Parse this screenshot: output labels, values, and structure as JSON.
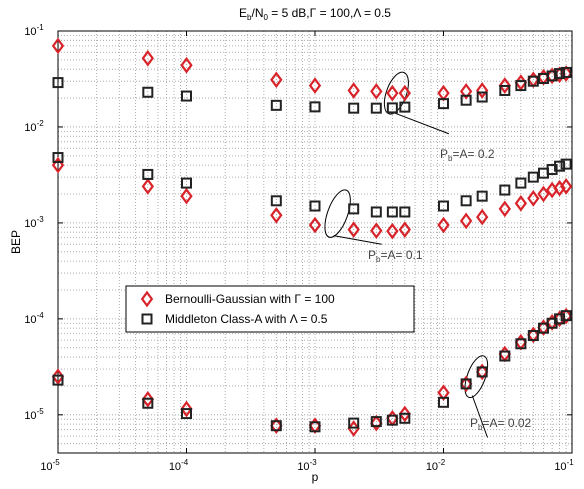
{
  "chart_data": {
    "type": "scatter",
    "title": {
      "prefix": "E",
      "sub": "b",
      "mid": "/N",
      "sub2": "0",
      "suffix": " = 5 dB,Γ = 100,Λ = 0.5"
    },
    "xlabel": "p",
    "ylabel": "BEP",
    "xscale": "log",
    "yscale": "log",
    "xlim": [
      1e-05,
      0.1
    ],
    "ylim": [
      4e-06,
      0.1
    ],
    "grid": true,
    "legend_position": "center-left",
    "x_ticks": [
      {
        "value": 1e-05,
        "base": "10",
        "exp": "-5"
      },
      {
        "value": 0.0001,
        "base": "10",
        "exp": "-4"
      },
      {
        "value": 0.001,
        "base": "10",
        "exp": "-3"
      },
      {
        "value": 0.01,
        "base": "10",
        "exp": "-2"
      },
      {
        "value": 0.1,
        "base": "10",
        "exp": "-1"
      }
    ],
    "y_ticks": [
      {
        "value": 1e-05,
        "base": "10",
        "exp": "-5"
      },
      {
        "value": 0.0001,
        "base": "10",
        "exp": "-4"
      },
      {
        "value": 0.001,
        "base": "10",
        "exp": "-3"
      },
      {
        "value": 0.01,
        "base": "10",
        "exp": "-2"
      },
      {
        "value": 0.1,
        "base": "10",
        "exp": "-1"
      }
    ],
    "series": [
      {
        "name": "Bernoulli-Gaussian with  Γ = 100",
        "marker": "diamond",
        "color": "#d9232a",
        "groups": [
          {
            "x": [
              1e-05,
              5e-05,
              0.0001,
              0.0005,
              0.001,
              0.002,
              0.003,
              0.004,
              0.005,
              0.01,
              0.015,
              0.02,
              0.03,
              0.04,
              0.05,
              0.06,
              0.07,
              0.08,
              0.09
            ],
            "y": [
              0.07,
              0.052,
              0.044,
              0.031,
              0.027,
              0.024,
              0.0235,
              0.0225,
              0.0225,
              0.0225,
              0.0235,
              0.024,
              0.027,
              0.029,
              0.031,
              0.033,
              0.034,
              0.035,
              0.036
            ]
          },
          {
            "x": [
              1e-05,
              5e-05,
              0.0001,
              0.0005,
              0.001,
              0.002,
              0.003,
              0.004,
              0.005,
              0.01,
              0.015,
              0.02,
              0.03,
              0.04,
              0.05,
              0.06,
              0.07,
              0.08,
              0.09
            ],
            "y": [
              0.004,
              0.0024,
              0.0019,
              0.0012,
              0.00095,
              0.00085,
              0.00083,
              0.00082,
              0.00085,
              0.00095,
              0.00105,
              0.00115,
              0.0014,
              0.0016,
              0.0018,
              0.002,
              0.0022,
              0.0023,
              0.0024
            ]
          },
          {
            "x": [
              1e-05,
              5e-05,
              0.0001,
              0.0005,
              0.001,
              0.002,
              0.003,
              0.004,
              0.005,
              0.01,
              0.015,
              0.02,
              0.03,
              0.04,
              0.05,
              0.06,
              0.07,
              0.08,
              0.09
            ],
            "y": [
              2.5e-05,
              1.45e-05,
              1.15e-05,
              7.7e-06,
              7.7e-06,
              7.2e-06,
              8.2e-06,
              9.2e-06,
              1.02e-05,
              1.7e-05,
              2.1e-05,
              2.8e-05,
              4.3e-05,
              5.7e-05,
              6.8e-05,
              8.1e-05,
              9.2e-05,
              0.0001,
              0.000107
            ]
          }
        ]
      },
      {
        "name": "Middleton Class-A with  Λ = 0.5",
        "marker": "square",
        "color": "#222222",
        "groups": [
          {
            "x": [
              1e-05,
              5e-05,
              0.0001,
              0.0005,
              0.001,
              0.002,
              0.003,
              0.004,
              0.005,
              0.01,
              0.015,
              0.02,
              0.03,
              0.04,
              0.05,
              0.06,
              0.07,
              0.08,
              0.09
            ],
            "y": [
              0.029,
              0.023,
              0.021,
              0.0168,
              0.0162,
              0.0157,
              0.0157,
              0.0158,
              0.0161,
              0.0175,
              0.019,
              0.0205,
              0.024,
              0.027,
              0.03,
              0.032,
              0.034,
              0.036,
              0.037
            ]
          },
          {
            "x": [
              1e-05,
              5e-05,
              0.0001,
              0.0005,
              0.001,
              0.002,
              0.003,
              0.004,
              0.005,
              0.01,
              0.015,
              0.02,
              0.03,
              0.04,
              0.05,
              0.06,
              0.07,
              0.08,
              0.09
            ],
            "y": [
              0.0048,
              0.0032,
              0.0026,
              0.0017,
              0.0015,
              0.0014,
              0.0013,
              0.0013,
              0.0013,
              0.0015,
              0.0017,
              0.0019,
              0.0022,
              0.0026,
              0.003,
              0.0033,
              0.0036,
              0.0039,
              0.0041
            ]
          },
          {
            "x": [
              1e-05,
              5e-05,
              0.0001,
              0.0005,
              0.001,
              0.002,
              0.003,
              0.004,
              0.005,
              0.01,
              0.015,
              0.02,
              0.03,
              0.04,
              0.05,
              0.06,
              0.07,
              0.08,
              0.09
            ],
            "y": [
              2.3e-05,
              1.32e-05,
              1.03e-05,
              7.7e-06,
              7.5e-06,
              8.2e-06,
              8.5e-06,
              8.8e-06,
              9.2e-06,
              1.35e-05,
              2.1e-05,
              2.8e-05,
              4.1e-05,
              5.5e-05,
              6.7e-05,
              8e-05,
              9e-05,
              0.0001,
              0.000108
            ]
          }
        ]
      }
    ],
    "annotations": [
      {
        "main": "P",
        "sub": "b",
        "rest": "=A= 0.2"
      },
      {
        "main": "P",
        "sub": "b",
        "rest": "=A= 0.1"
      },
      {
        "main": "P",
        "sub": "b",
        "rest": "=A= 0.02"
      }
    ]
  }
}
